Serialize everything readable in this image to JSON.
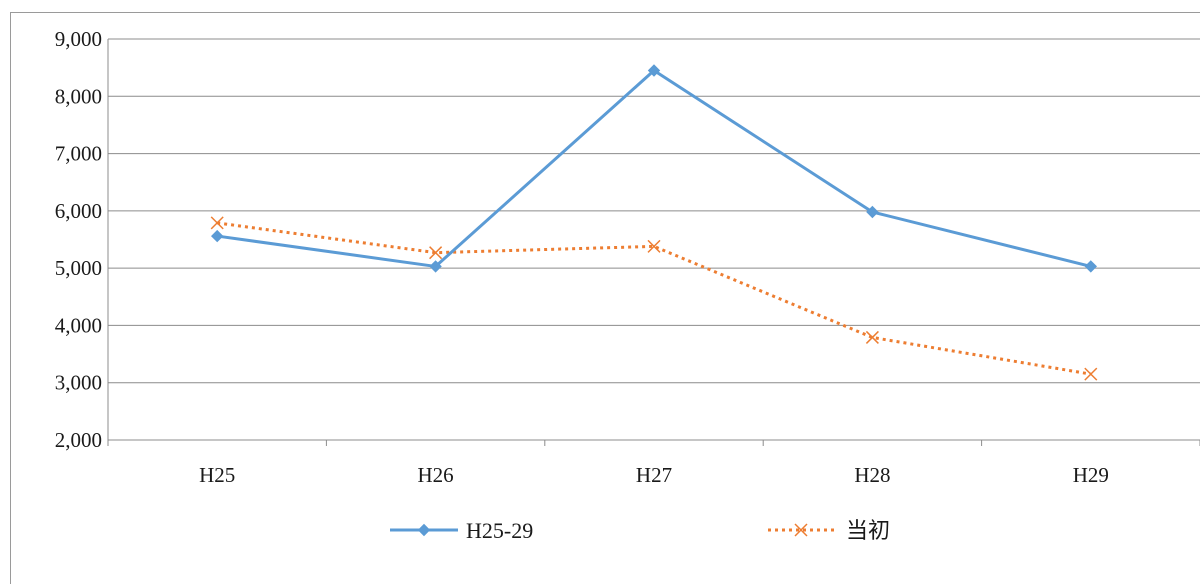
{
  "chart_data": {
    "type": "line",
    "categories": [
      "H25",
      "H26",
      "H27",
      "H28",
      "H29"
    ],
    "ylim": [
      2000,
      9000
    ],
    "yticks": [
      2000,
      3000,
      4000,
      5000,
      6000,
      7000,
      8000,
      9000
    ],
    "ytick_labels": [
      "2,000",
      "3,000",
      "4,000",
      "5,000",
      "6,000",
      "7,000",
      "8,000",
      "9,000"
    ],
    "grid": true,
    "legend_position": "bottom",
    "series": [
      {
        "name": "H25-29",
        "values": [
          5560,
          5030,
          8450,
          5980,
          5030
        ],
        "color": "#5b9bd5",
        "line_style": "solid",
        "marker": "diamond"
      },
      {
        "name": "当初",
        "values": [
          5790,
          5270,
          5380,
          3790,
          3150
        ],
        "color": "#ed7d31",
        "line_style": "dotted",
        "marker": "x"
      }
    ]
  }
}
